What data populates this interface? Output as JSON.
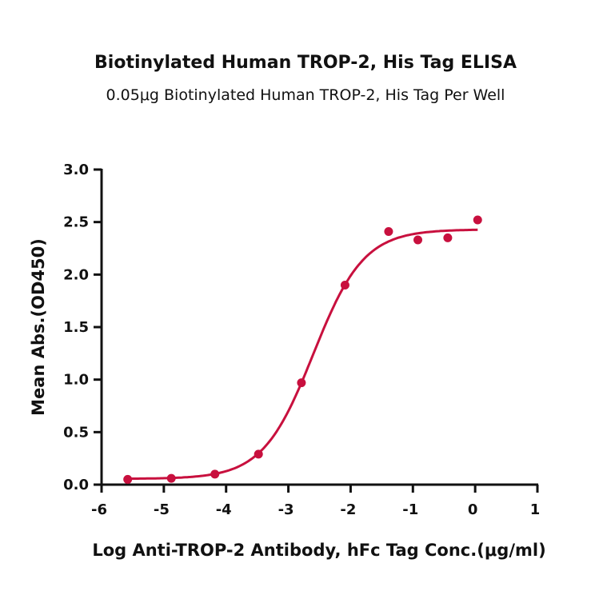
{
  "chart_data": {
    "type": "scatter",
    "title": "Biotinylated Human TROP-2, His Tag ELISA",
    "subtitle": "0.05μg Biotinylated Human TROP-2, His Tag Per Well",
    "xlabel": "Log Anti-TROP-2 Antibody, hFc Tag Conc.(μg/ml)",
    "ylabel": "Mean Abs.(OD450)",
    "xlim": [
      -6,
      1
    ],
    "ylim": [
      0,
      3.0
    ],
    "xticks": [
      "-6",
      "-5",
      "-4",
      "-3",
      "-2",
      "-1",
      "0",
      "1"
    ],
    "yticks": [
      "0.0",
      "0.5",
      "1.0",
      "1.5",
      "2.0",
      "2.5",
      "3.0"
    ],
    "grid": false,
    "color": "#c8103e",
    "x": [
      -5.58,
      -4.88,
      -4.18,
      -3.48,
      -2.79,
      -2.09,
      -1.39,
      -0.92,
      -0.44,
      0.04
    ],
    "y": [
      0.05,
      0.06,
      0.1,
      0.29,
      0.97,
      1.9,
      2.41,
      2.33,
      2.35,
      2.52
    ],
    "fit": {
      "model": "4PL",
      "bottom": 0.055,
      "top": 2.43,
      "logEC50": -2.6,
      "hill": 1.07
    }
  }
}
